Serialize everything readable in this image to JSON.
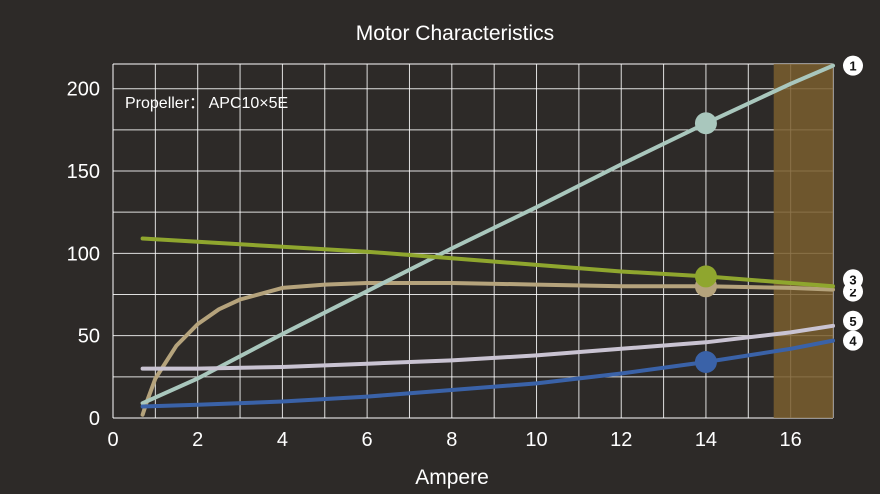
{
  "chart_data": {
    "type": "line",
    "title": "Motor Characteristics",
    "xlabel": "Ampere",
    "ylabel": "",
    "xlim": [
      0,
      17
    ],
    "ylim": [
      0,
      215
    ],
    "xticks": [
      0,
      2,
      4,
      6,
      8,
      10,
      12,
      14,
      16
    ],
    "yticks": [
      0,
      50,
      100,
      150,
      200
    ],
    "annotation": "Propeller： APC10×5E",
    "highlight_region": {
      "x_from": 15.6,
      "x_to": 17,
      "color": "#7a5e2e"
    },
    "marker_x": 14,
    "series": [
      {
        "name": "1",
        "color": "#a9c7bd",
        "x": [
          0.7,
          2,
          4,
          6,
          8,
          10,
          12,
          14,
          16,
          17
        ],
        "y": [
          9,
          24,
          51,
          77,
          103,
          128,
          154,
          179,
          203,
          214
        ],
        "marker_y": 179
      },
      {
        "name": "2",
        "color": "#b5a37c",
        "x": [
          0.7,
          0.8,
          1,
          1.5,
          2,
          2.5,
          3,
          4,
          5,
          6,
          8,
          10,
          12,
          14,
          16,
          17
        ],
        "y": [
          2,
          10,
          24,
          44,
          57,
          66,
          72,
          79,
          81,
          82,
          82,
          81,
          80,
          80,
          79,
          78
        ],
        "marker_y": 80
      },
      {
        "name": "3",
        "color": "#8fa62e",
        "x": [
          0.7,
          2,
          4,
          6,
          8,
          10,
          12,
          14,
          16,
          17
        ],
        "y": [
          109,
          107,
          104,
          101,
          97,
          93,
          89,
          86,
          82,
          80
        ],
        "marker_y": 86
      },
      {
        "name": "4",
        "color": "#3a62a8",
        "x": [
          0.7,
          2,
          4,
          6,
          8,
          10,
          12,
          14,
          16,
          17
        ],
        "y": [
          7,
          8,
          10,
          13,
          17,
          21,
          27,
          34,
          42,
          47
        ],
        "marker_y": 34
      },
      {
        "name": "5",
        "color": "#c9c3d2",
        "x": [
          0.7,
          2,
          4,
          6,
          8,
          10,
          12,
          14,
          16,
          17
        ],
        "y": [
          30,
          30,
          31,
          33,
          35,
          38,
          42,
          46,
          52,
          56
        ],
        "marker_y": null
      }
    ]
  }
}
